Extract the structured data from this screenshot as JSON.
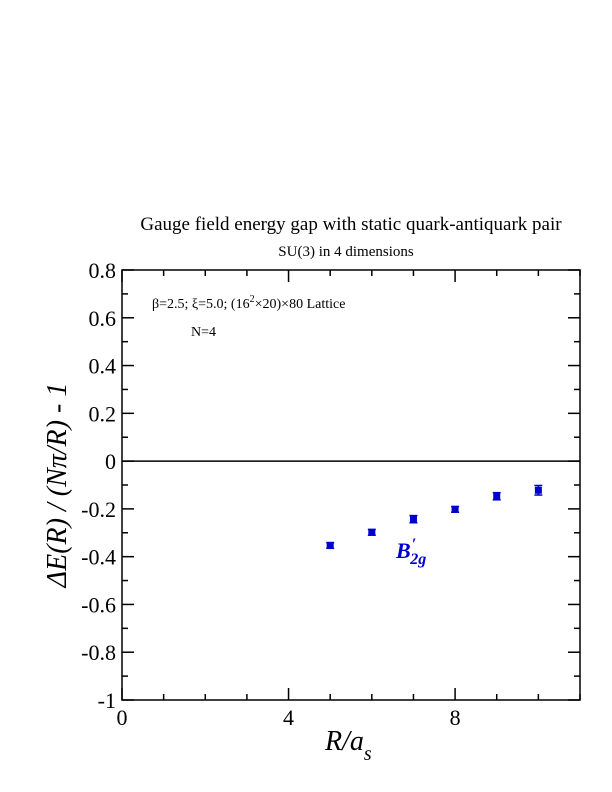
{
  "chart_data": {
    "type": "scatter",
    "title": "Gauge field energy gap with static quark-antiquark pair",
    "subtitle": "SU(3) in 4 dimensions",
    "annotations": {
      "params": "β=2.5;  ξ=5.0;  (16²×20)×80 Lattice",
      "n": "N=4"
    },
    "xlabel": "R/a_s",
    "ylabel": "ΔE(R) / (Nπ/R) - 1",
    "xlim": [
      0,
      11
    ],
    "ylim": [
      -1,
      0.8
    ],
    "x_ticks": [
      "0",
      "4",
      "8"
    ],
    "x_tick_values": [
      0,
      4,
      8
    ],
    "y_ticks": [
      "0.8",
      "0.6",
      "0.4",
      "0.2",
      "0",
      "-0.2",
      "-0.4",
      "-0.6",
      "-0.8",
      "-1"
    ],
    "y_tick_values": [
      0.8,
      0.6,
      0.4,
      0.2,
      0,
      -0.2,
      -0.4,
      -0.6,
      -0.8,
      -1
    ],
    "reference_line_y": 0,
    "series": [
      {
        "name": "B′2g",
        "label_main": "B",
        "label_prime": "′",
        "label_sub": "2g",
        "color": "#0000cc",
        "x": [
          5,
          6,
          7,
          8,
          9,
          10
        ],
        "y": [
          -0.353,
          -0.298,
          -0.243,
          -0.202,
          -0.147,
          -0.122
        ],
        "err": [
          0.012,
          0.012,
          0.015,
          0.012,
          0.015,
          0.02
        ]
      }
    ]
  }
}
